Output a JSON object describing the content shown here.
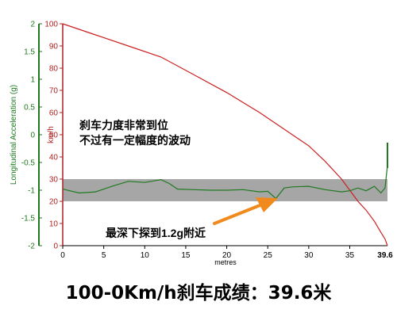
{
  "chart_data": {
    "type": "line",
    "xlabel": "metres",
    "x_ticks": [
      "0",
      "5",
      "10",
      "15",
      "20",
      "25",
      "30",
      "35"
    ],
    "x_end_label": "39.6",
    "xlim": [
      0,
      39.6
    ],
    "left_axis": {
      "label": "Longitudinal Acceleration (g)",
      "ticks": [
        "2",
        "1.5",
        "1",
        "0.5",
        "0",
        "-0.5",
        "-1",
        "-1.5",
        "-2"
      ],
      "ylim": [
        -2,
        2
      ],
      "color": "#1f7a1f"
    },
    "right_axis": {
      "label": "km/h",
      "ticks": [
        "100",
        "90",
        "80",
        "70",
        "60",
        "50",
        "40",
        "30",
        "20",
        "10",
        "0"
      ],
      "ylim": [
        0,
        100
      ],
      "color": "#b02020"
    },
    "band": {
      "from": -1.2,
      "to": -0.8,
      "color": "#a6a6a6"
    },
    "series": [
      {
        "axis": "right",
        "color": "#cc2020",
        "x": [
          0,
          4,
          8,
          12,
          16,
          20,
          24,
          28,
          30,
          32,
          34,
          36,
          37,
          38,
          38.8,
          39.3,
          39.6
        ],
        "values": [
          100,
          95,
          90,
          85,
          77,
          69,
          60,
          50,
          45,
          38,
          30,
          20,
          16,
          11,
          6,
          3,
          0
        ]
      },
      {
        "axis": "left",
        "color": "#1f7a1f",
        "x": [
          0,
          2,
          4,
          6,
          8,
          10,
          12,
          13,
          14,
          16,
          18,
          20,
          22,
          24,
          25,
          26,
          27,
          28,
          30,
          32,
          34,
          35,
          36,
          37,
          38,
          38.8,
          39.3,
          39.6
        ],
        "values": [
          -0.98,
          -1.05,
          -1.03,
          -0.93,
          -0.84,
          -0.86,
          -0.81,
          -0.88,
          -0.98,
          -0.99,
          -1.0,
          -1.0,
          -0.99,
          -1.03,
          -1.02,
          -1.15,
          -0.96,
          -0.94,
          -0.93,
          -0.99,
          -1.03,
          -1.01,
          -0.96,
          -1.01,
          -0.93,
          -1.05,
          -0.96,
          -0.55
        ]
      }
    ],
    "annotations": {
      "note_line1": "刹车力度非常到位",
      "note_line2": "不过有一定幅度的波动",
      "arrow_label": "最深下探到1.2g附近",
      "arrow_color": "#f08a1c"
    }
  },
  "caption": "100-0Km/h刹车成绩：39.6米"
}
